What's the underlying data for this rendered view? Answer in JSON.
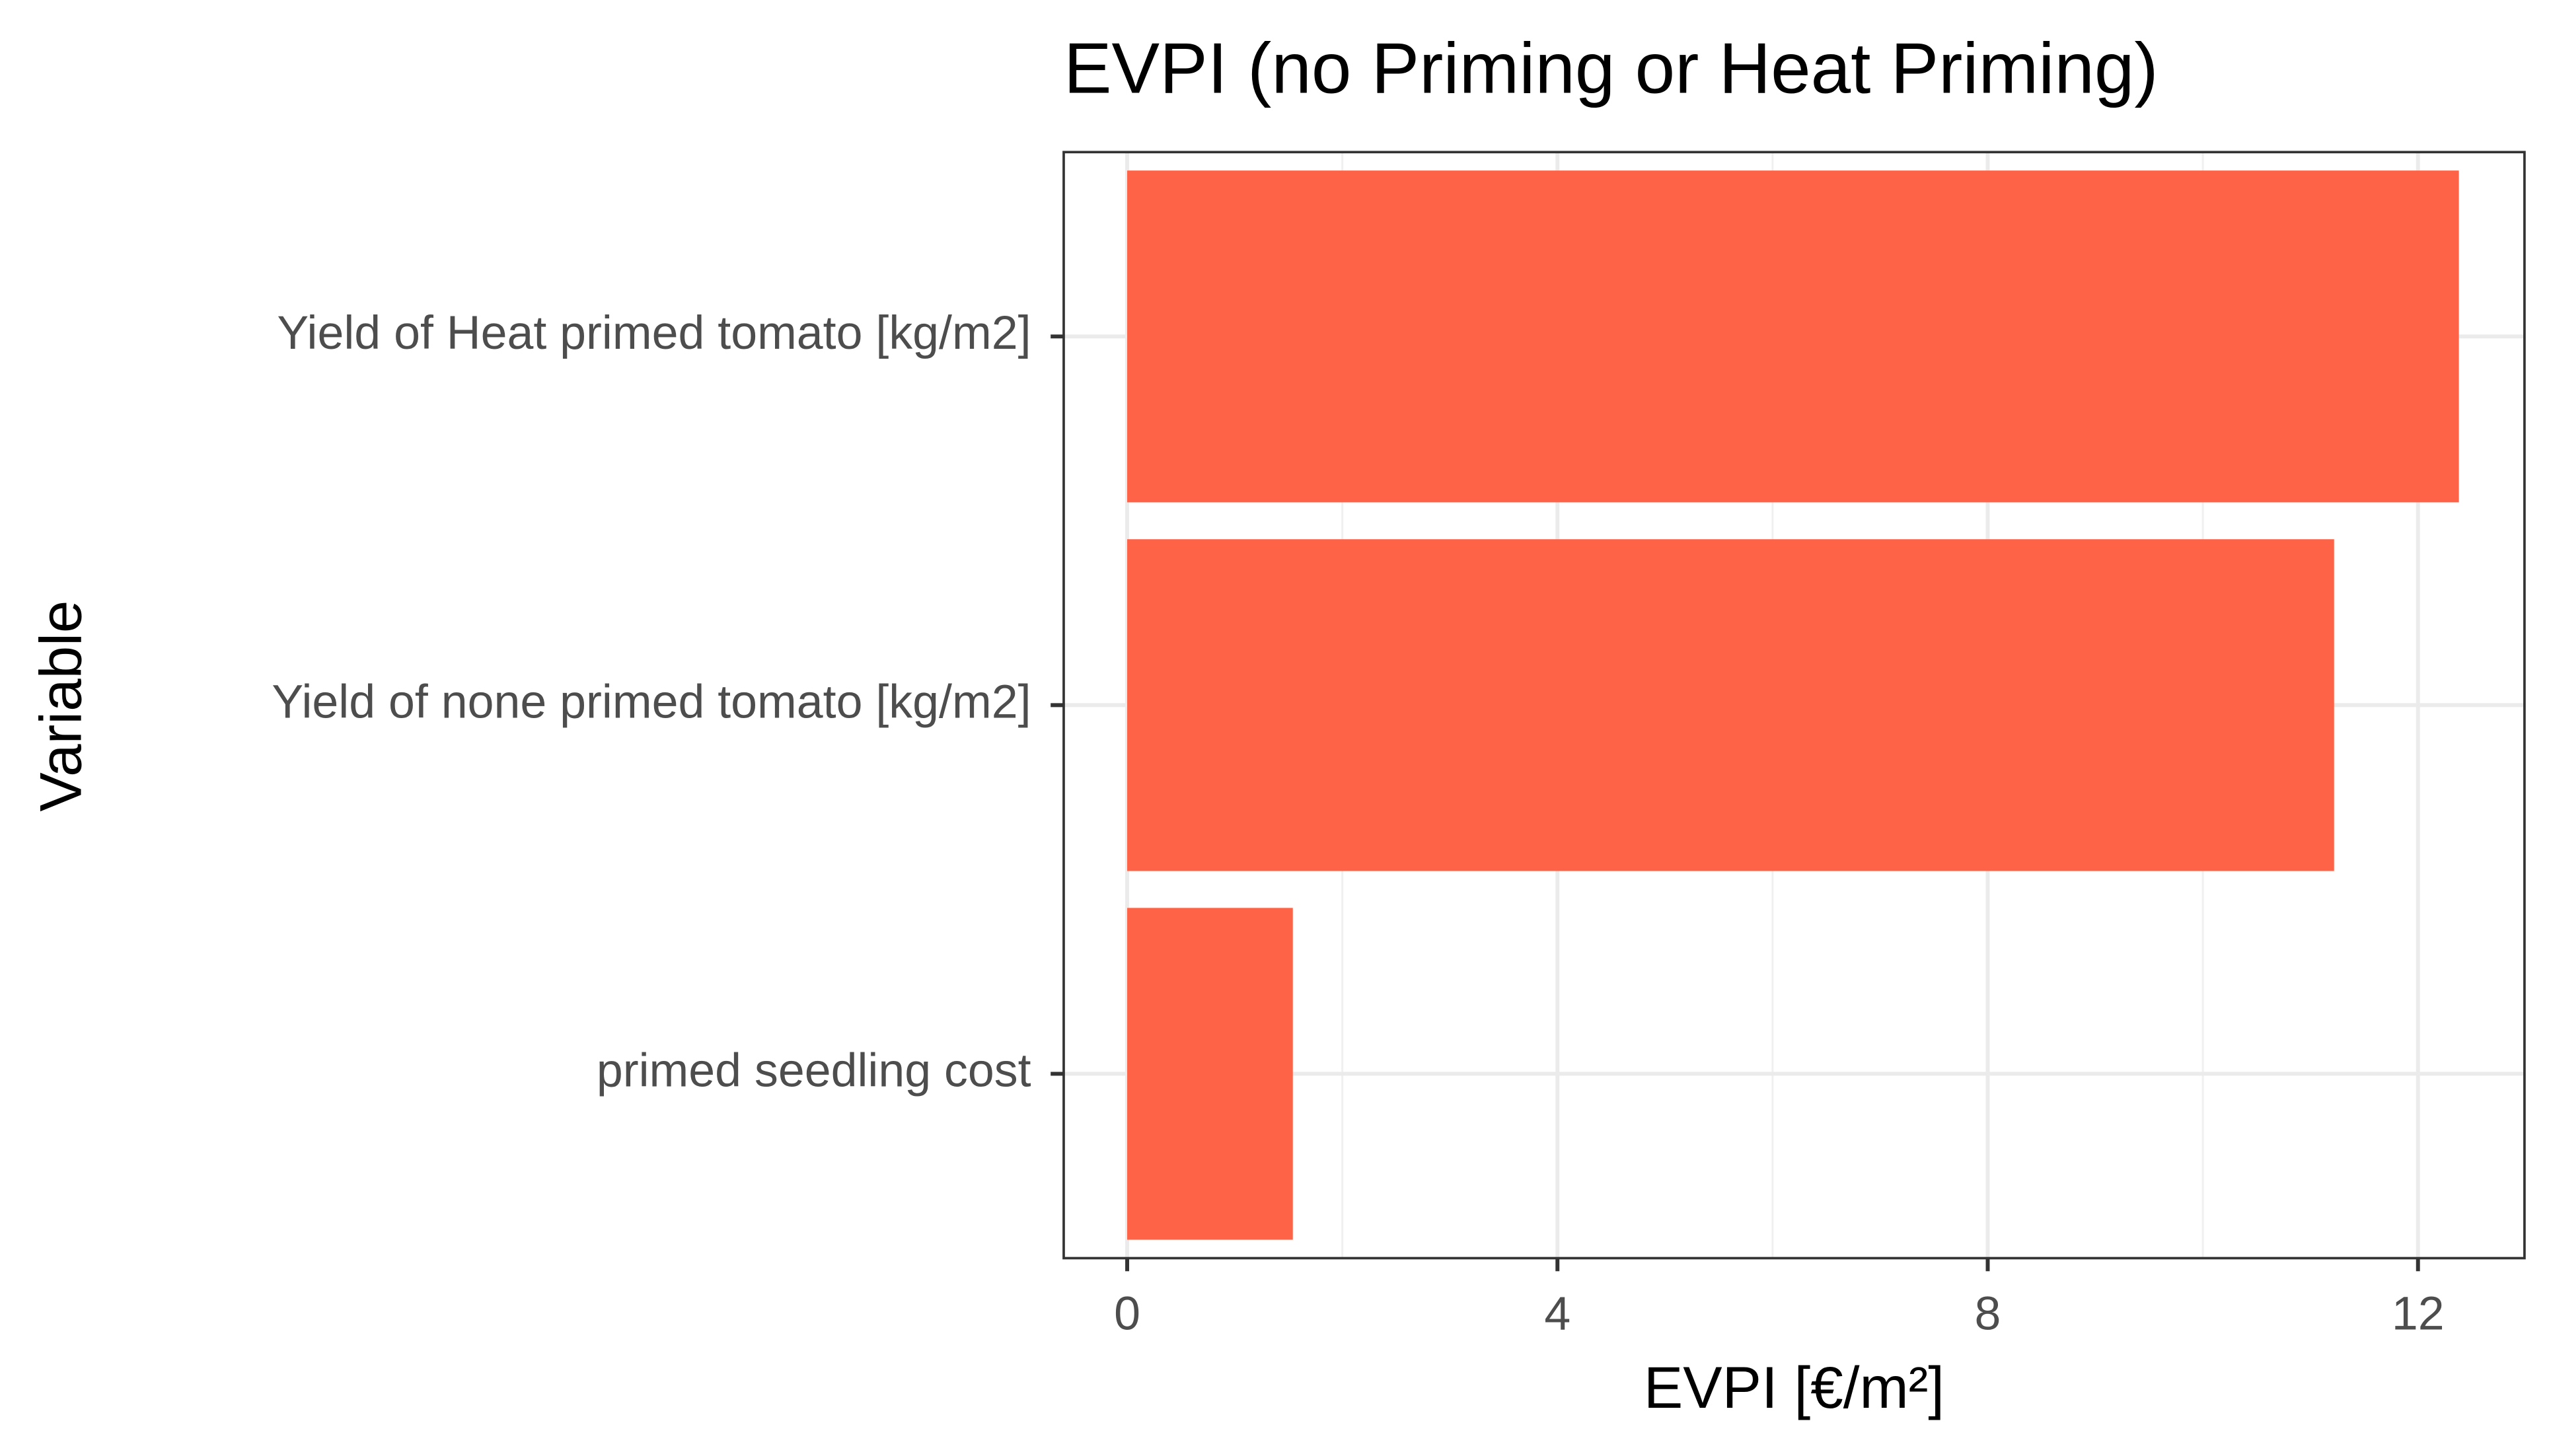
{
  "chart_data": {
    "type": "hbar",
    "title": "EVPI (no Priming or Heat Priming)",
    "x_label": "EVPI [€/m²]",
    "y_label": "Variable",
    "categories": [
      "Yield of Heat primed tomato [kg/m2]",
      "Yield of none primed tomato [kg/m2]",
      "primed seedling cost"
    ],
    "values": [
      12.38,
      11.22,
      1.54
    ],
    "color": "#ff6347",
    "xlim": [
      -0.59,
      12.99
    ],
    "xticks": [
      0,
      4,
      8,
      12
    ],
    "grid": true,
    "minor_grid": true
  }
}
